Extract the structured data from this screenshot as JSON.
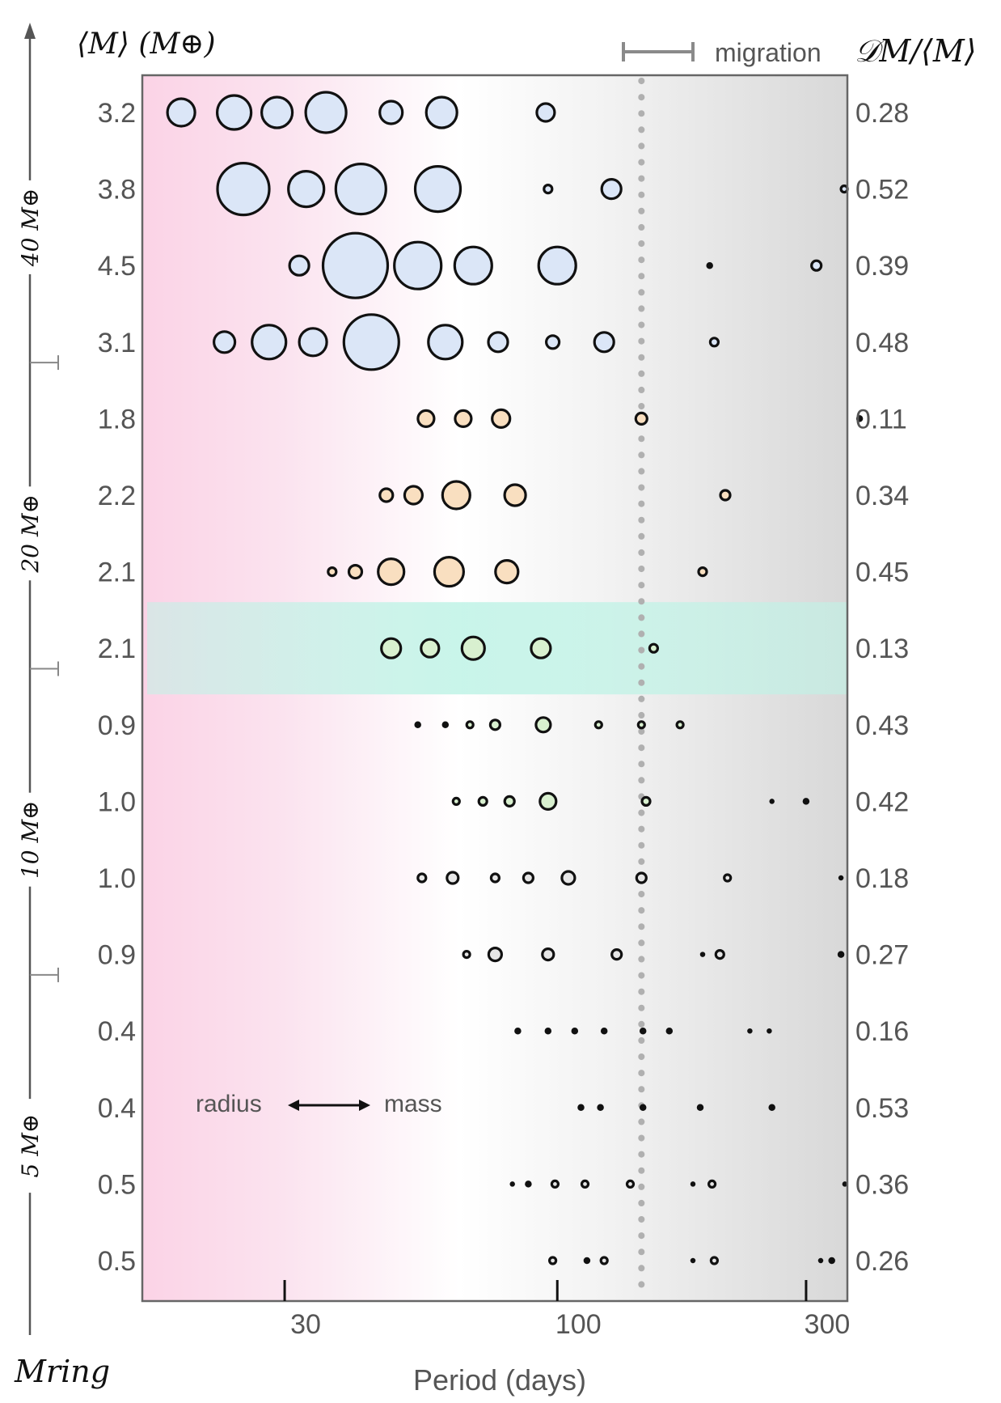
{
  "chart_data": {
    "type": "scatter",
    "xlabel": "Period (days)",
    "x_scale": "log",
    "xlim": [
      16,
      360
    ],
    "x_ticks": [
      {
        "value": 30,
        "label": "30"
      },
      {
        "value": 100,
        "label": "100"
      },
      {
        "value": 300,
        "label": "300"
      }
    ],
    "left_header": "⟨M⟩ (M⊕)",
    "right_header": "𝒟M/⟨M⟩",
    "ring_axis_label": "Mring",
    "ring_groups": [
      {
        "label": "40 M⊕",
        "rows": [
          0,
          3
        ]
      },
      {
        "label": "20 M⊕",
        "rows": [
          4,
          7
        ]
      },
      {
        "label": "10 M⊕",
        "rows": [
          8,
          11
        ]
      },
      {
        "label": "5 M⊕",
        "rows": [
          12,
          15
        ]
      }
    ],
    "migration_marker": {
      "period": 145,
      "label": "migration"
    },
    "annotation": {
      "left": "radius",
      "right": "mass"
    },
    "colors": {
      "pink": "#fbd3e6",
      "gray": "#d8d8d8",
      "highlight": "#bff3e6",
      "row_group_colors": [
        "#dbe6f7",
        "#f9dfc0",
        "#d8f0cf",
        "#e6e6e6"
      ],
      "outline": "#111111",
      "text": "#555555"
    },
    "highlight_row": 7,
    "rows": [
      {
        "mean_mass": "3.2",
        "dispersion": "0.28",
        "group": 0,
        "planets": [
          [
            19,
            17
          ],
          [
            24,
            21
          ],
          [
            29,
            19
          ],
          [
            36,
            25
          ],
          [
            48,
            14
          ],
          [
            60,
            19
          ],
          [
            95,
            11
          ]
        ]
      },
      {
        "mean_mass": "3.8",
        "dispersion": "0.52",
        "group": 0,
        "planets": [
          [
            25,
            32
          ],
          [
            33,
            22
          ],
          [
            42,
            31
          ],
          [
            59,
            28
          ],
          [
            96,
            5
          ],
          [
            127,
            12
          ],
          [
            355,
            4
          ]
        ]
      },
      {
        "mean_mass": "4.5",
        "dispersion": "0.39",
        "group": 0,
        "planets": [
          [
            32,
            12
          ],
          [
            41,
            40
          ],
          [
            54,
            29
          ],
          [
            69,
            23
          ],
          [
            100,
            23
          ],
          [
            196,
            3
          ],
          [
            314,
            6
          ]
        ]
      },
      {
        "mean_mass": "3.1",
        "dispersion": "0.48",
        "group": 0,
        "planets": [
          [
            23,
            13
          ],
          [
            28,
            21
          ],
          [
            34,
            17
          ],
          [
            44,
            34
          ],
          [
            61,
            21
          ],
          [
            77,
            12
          ],
          [
            98,
            8
          ],
          [
            123,
            12
          ],
          [
            200,
            5
          ]
        ]
      },
      {
        "mean_mass": "1.8",
        "dispersion": "0.11",
        "group": 1,
        "planets": [
          [
            56,
            10
          ],
          [
            66,
            10
          ],
          [
            78,
            11
          ],
          [
            145,
            7
          ],
          [
            380,
            3
          ]
        ]
      },
      {
        "mean_mass": "2.2",
        "dispersion": "0.34",
        "group": 1,
        "planets": [
          [
            47,
            8
          ],
          [
            53,
            11
          ],
          [
            64,
            17
          ],
          [
            83,
            13
          ],
          [
            210,
            6
          ]
        ]
      },
      {
        "mean_mass": "2.1",
        "dispersion": "0.45",
        "group": 1,
        "planets": [
          [
            37,
            5
          ],
          [
            41,
            8
          ],
          [
            48,
            16
          ],
          [
            62,
            18
          ],
          [
            80,
            14
          ],
          [
            190,
            5
          ]
        ]
      },
      {
        "mean_mass": "2.1",
        "dispersion": "0.13",
        "group": 2,
        "planets": [
          [
            48,
            12
          ],
          [
            57,
            11
          ],
          [
            69,
            14
          ],
          [
            93,
            12
          ],
          [
            153,
            5
          ]
        ]
      },
      {
        "mean_mass": "0.9",
        "dispersion": "0.43",
        "group": 2,
        "planets": [
          [
            54,
            3
          ],
          [
            61,
            3
          ],
          [
            68,
            4
          ],
          [
            76,
            6
          ],
          [
            94,
            9
          ],
          [
            120,
            4
          ],
          [
            145,
            4
          ],
          [
            172,
            4
          ]
        ]
      },
      {
        "mean_mass": "1.0",
        "dispersion": "0.42",
        "group": 2,
        "planets": [
          [
            64,
            4
          ],
          [
            72,
            5
          ],
          [
            81,
            6
          ],
          [
            96,
            10
          ],
          [
            148,
            5
          ],
          [
            258,
            2
          ],
          [
            300,
            3
          ]
        ]
      },
      {
        "mean_mass": "1.0",
        "dispersion": "0.18",
        "group": 3,
        "planets": [
          [
            55,
            5
          ],
          [
            63,
            7
          ],
          [
            76,
            5
          ],
          [
            88,
            6
          ],
          [
            105,
            8
          ],
          [
            145,
            6
          ],
          [
            212,
            4
          ],
          [
            350,
            2
          ]
        ]
      },
      {
        "mean_mass": "0.9",
        "dispersion": "0.27",
        "group": 3,
        "planets": [
          [
            67,
            4
          ],
          [
            76,
            8
          ],
          [
            96,
            7
          ],
          [
            130,
            6
          ],
          [
            190,
            2
          ],
          [
            205,
            5
          ],
          [
            350,
            3
          ]
        ]
      },
      {
        "mean_mass": "0.4",
        "dispersion": "0.16",
        "group": 3,
        "planets": [
          [
            84,
            3
          ],
          [
            96,
            3
          ],
          [
            108,
            3
          ],
          [
            123,
            3
          ],
          [
            146,
            3
          ],
          [
            164,
            3
          ],
          [
            234,
            2
          ],
          [
            255,
            2
          ]
        ]
      },
      {
        "mean_mass": "0.4",
        "dispersion": "0.53",
        "group": 3,
        "planets": [
          [
            111,
            3
          ],
          [
            121,
            3
          ],
          [
            146,
            3
          ],
          [
            188,
            3
          ],
          [
            258,
            3
          ]
        ]
      },
      {
        "mean_mass": "0.5",
        "dispersion": "0.36",
        "group": 3,
        "planets": [
          [
            82,
            2
          ],
          [
            88,
            3
          ],
          [
            99,
            4
          ],
          [
            113,
            4
          ],
          [
            138,
            4
          ],
          [
            182,
            2
          ],
          [
            198,
            4
          ],
          [
            356,
            2
          ]
        ]
      },
      {
        "mean_mass": "0.5",
        "dispersion": "0.26",
        "group": 3,
        "planets": [
          [
            98,
            4
          ],
          [
            114,
            3
          ],
          [
            123,
            4
          ],
          [
            182,
            2
          ],
          [
            200,
            4
          ],
          [
            320,
            2
          ],
          [
            336,
            3
          ]
        ]
      }
    ]
  }
}
